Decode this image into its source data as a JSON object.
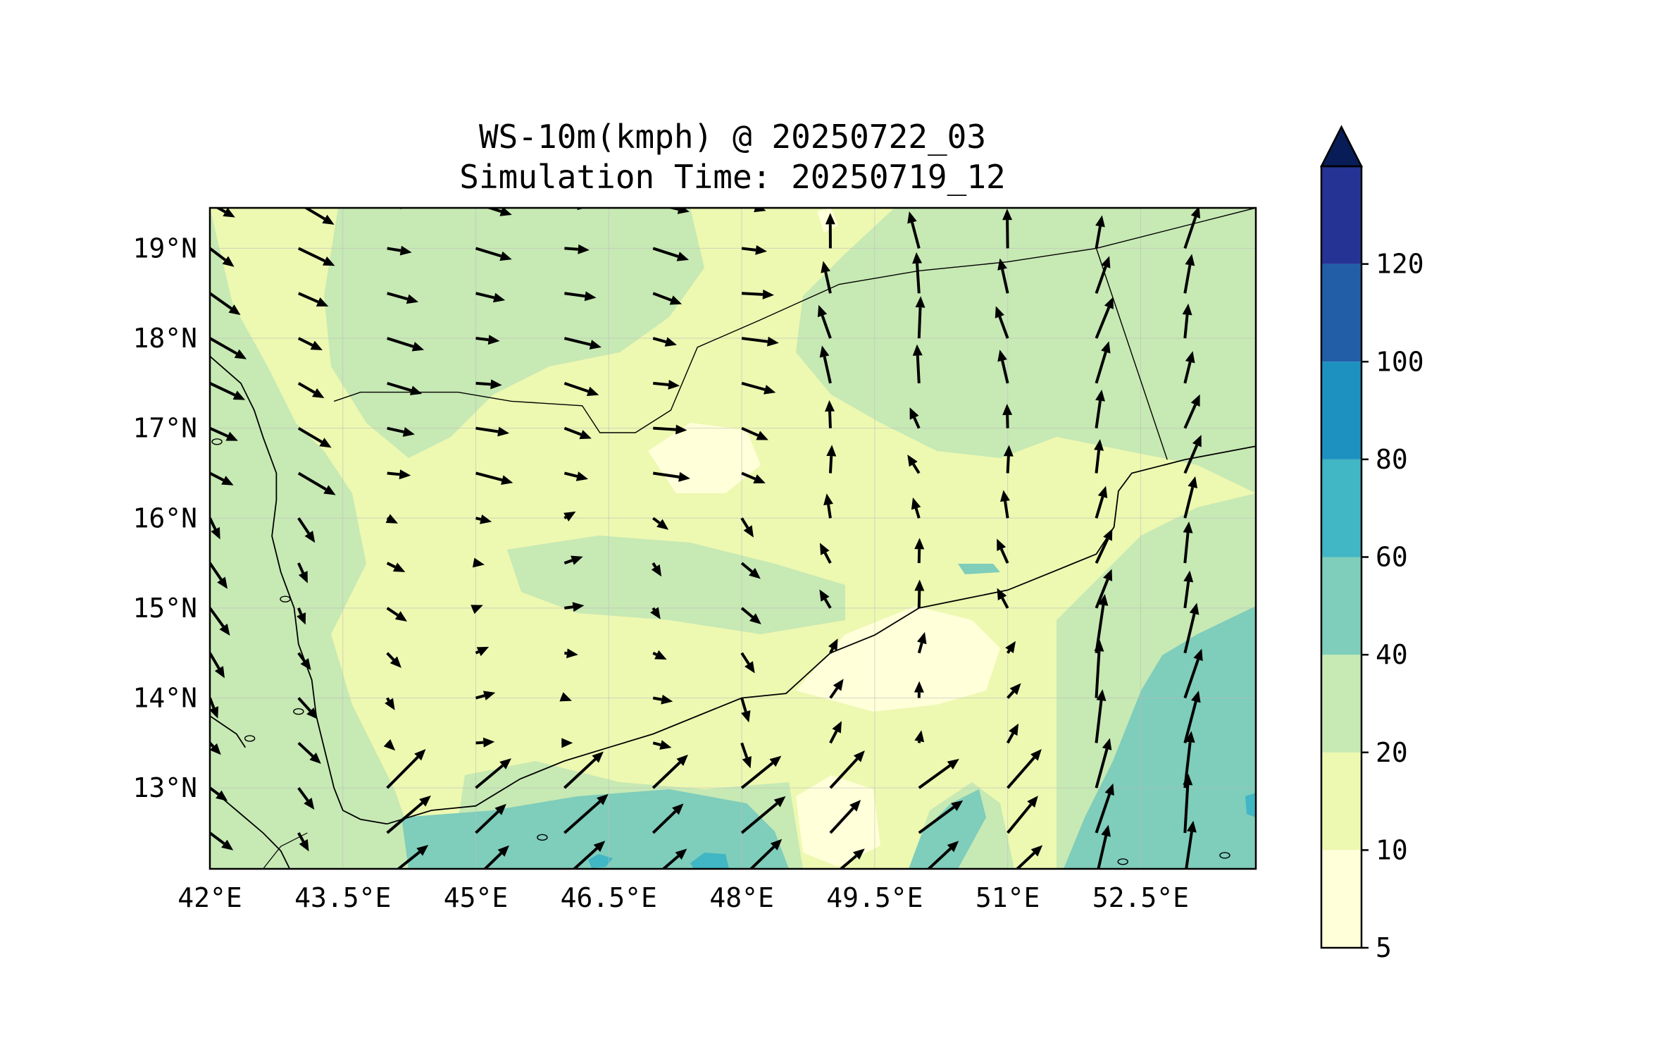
{
  "title": {
    "line1": "WS-10m(kmph) @ 20250722_03",
    "line2": "Simulation Time: 20250719_12"
  },
  "map": {
    "lon_range": [
      42.0,
      53.8
    ],
    "lat_range": [
      12.1,
      19.45
    ],
    "lon_ticks": [
      "42°E",
      "43.5°E",
      "45°E",
      "46.5°E",
      "48°E",
      "49.5°E",
      "51°E",
      "52.5°E"
    ],
    "lat_ticks": [
      "13°N",
      "14°N",
      "15°N",
      "16°N",
      "17°N",
      "18°N",
      "19°N"
    ]
  },
  "colorbar": {
    "levels": [
      "5",
      "10",
      "20",
      "40",
      "60",
      "80",
      "100",
      "120"
    ],
    "colors": [
      "#ffffd9",
      "#edf8b1",
      "#c7e9b4",
      "#7fcdbb",
      "#41b6c4",
      "#1d91c0",
      "#225ea8",
      "#253494"
    ],
    "extend_color": "#081d58",
    "extend": "max"
  },
  "field_colors": {
    "background": "#ffffd9",
    "light": "#edf8b1",
    "mid": "#c7e9b4",
    "high": "#7fcdbb",
    "very_high": "#41b6c4"
  }
}
